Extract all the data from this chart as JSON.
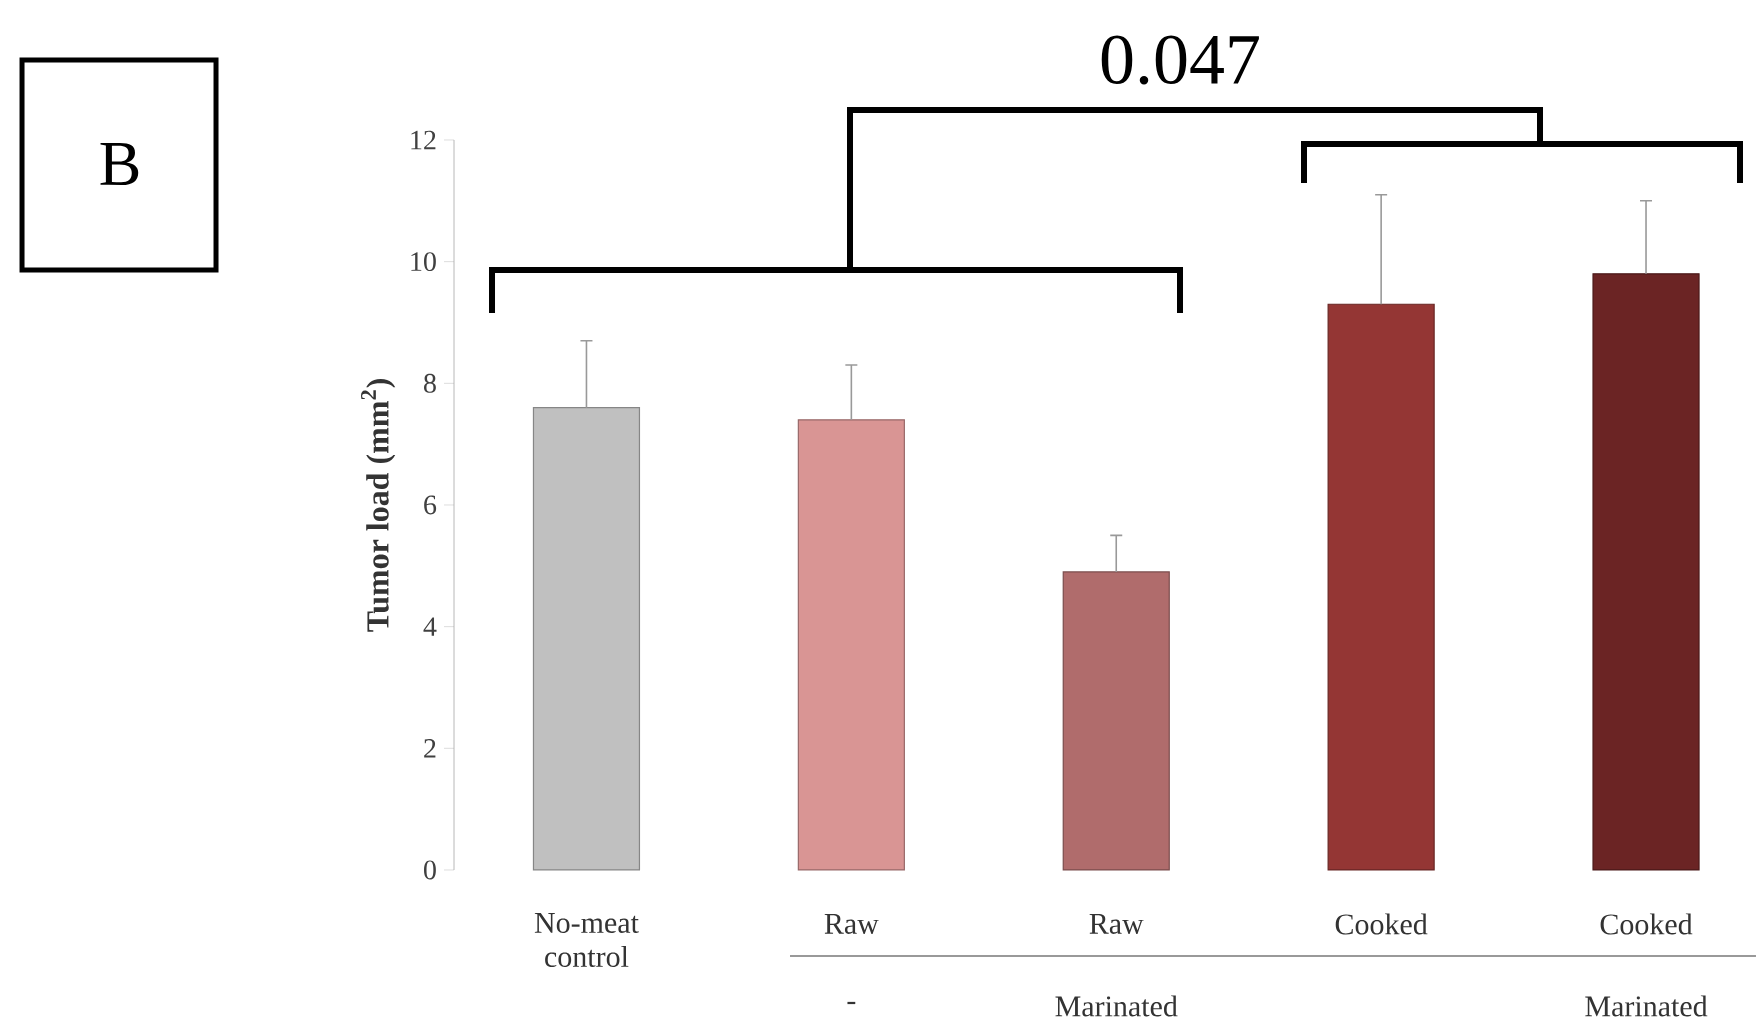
{
  "chart_data": {
    "type": "bar",
    "ylabel": "Tumor load (mm$^{2}$)",
    "categories": [
      "No-meat control",
      "Raw",
      "Raw",
      "Cooked",
      "Cooked"
    ],
    "values": [
      7.6,
      7.4,
      4.9,
      9.3,
      9.8
    ],
    "colors": [
      "#c0c0c0",
      "#d99594",
      "#b06c6c",
      "#943634",
      "#6b2424"
    ],
    "errors": [
      [
        7.6,
        8.7
      ],
      [
        7.4,
        8.3
      ],
      [
        4.9,
        5.5
      ],
      [
        9.3,
        11.1
      ],
      [
        9.8,
        11.0
      ]
    ],
    "ylim": [
      0,
      12
    ],
    "yticks": [
      0,
      2,
      4,
      6,
      8,
      10,
      12
    ],
    "annotations": [
      "-",
      "Marinated",
      "Marinated",
      "0.047",
      "B"
    ]
  }
}
